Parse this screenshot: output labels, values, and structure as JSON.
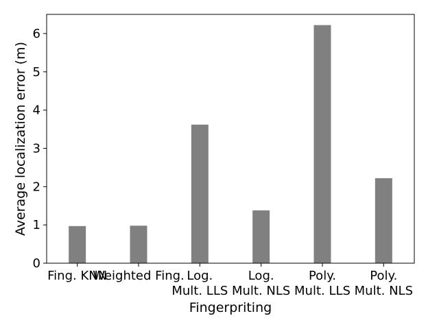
{
  "chart_data": {
    "type": "bar",
    "categories": [
      [
        "Fing. KNN"
      ],
      [
        "Weighted Fing."
      ],
      [
        "Log.",
        "Mult. LLS"
      ],
      [
        "Log.",
        "Mult. NLS"
      ],
      [
        "Poly.",
        "Mult. LLS"
      ],
      [
        "Poly.",
        "Mult. NLS"
      ]
    ],
    "values": [
      0.97,
      0.98,
      3.62,
      1.38,
      6.22,
      2.22
    ],
    "xlabel": "Fingerpriting",
    "ylabel": "Average localization error (m)",
    "ylim": [
      0,
      6.5
    ],
    "yticks": [
      0,
      1,
      2,
      3,
      4,
      5,
      6
    ],
    "grid": false,
    "colors": {
      "bar": "#808080",
      "axis": "#000000"
    }
  }
}
